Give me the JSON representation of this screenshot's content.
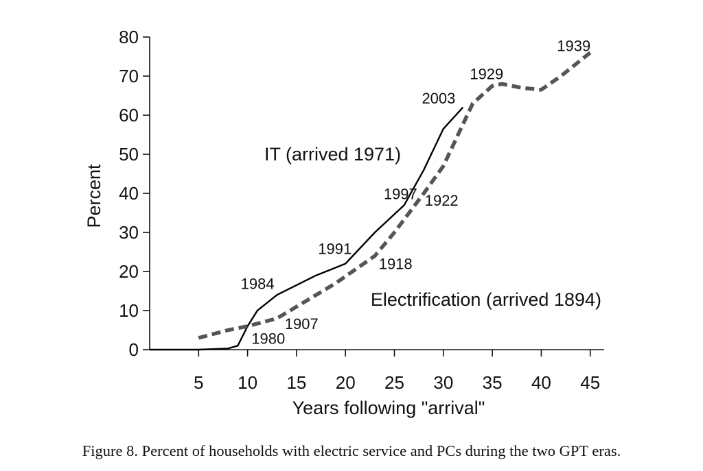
{
  "chart_data": {
    "type": "line",
    "xlabel": "Years following \"arrival\"",
    "ylabel": "Percent",
    "xlim": [
      0,
      46
    ],
    "ylim": [
      0,
      80
    ],
    "x_ticks": [
      5,
      10,
      15,
      20,
      25,
      30,
      35,
      40,
      45
    ],
    "y_ticks": [
      0,
      10,
      20,
      30,
      40,
      50,
      60,
      70,
      80
    ],
    "grid": false,
    "legend": "none (series labelled directly on the plot)",
    "series": [
      {
        "name": "IT (arrived 1971)",
        "style": "solid",
        "color": "#000000",
        "x": [
          0,
          5,
          8,
          9,
          10,
          11,
          13,
          15,
          17,
          20,
          23,
          26,
          28,
          30,
          32
        ],
        "y": [
          0,
          0,
          0.3,
          1,
          6,
          10,
          14,
          16.5,
          19,
          22,
          30,
          37,
          46,
          56.5,
          62
        ]
      },
      {
        "name": "Electrification (arrived 1894)",
        "style": "dashed",
        "color": "#555555",
        "x": [
          5,
          8,
          10,
          13,
          16,
          19,
          23,
          25,
          28,
          30,
          33,
          35,
          36,
          38,
          40,
          42,
          45
        ],
        "y": [
          3,
          5,
          6,
          8,
          12.5,
          17,
          24,
          30,
          40,
          47,
          63,
          67.5,
          68,
          67,
          66.5,
          70,
          76
        ]
      }
    ],
    "annotations": [
      {
        "text": "1980",
        "x": 10.4,
        "y": 1.5
      },
      {
        "text": "1984",
        "x": 9.3,
        "y": 15.5
      },
      {
        "text": "1991",
        "x": 17.2,
        "y": 24.5
      },
      {
        "text": "1997",
        "x": 23.9,
        "y": 38.5
      },
      {
        "text": "2003",
        "x": 27.8,
        "y": 63
      },
      {
        "text": "1907",
        "x": 13.8,
        "y": 5.3
      },
      {
        "text": "1918",
        "x": 23.4,
        "y": 20.6
      },
      {
        "text": "1922",
        "x": 28.1,
        "y": 36.8
      },
      {
        "text": "1929",
        "x": 32.7,
        "y": 69.2
      },
      {
        "text": "1939",
        "x": 41.6,
        "y": 76.4
      }
    ]
  },
  "caption": "Figure 8.  Percent of households with electric service and PCs during the two GPT eras."
}
